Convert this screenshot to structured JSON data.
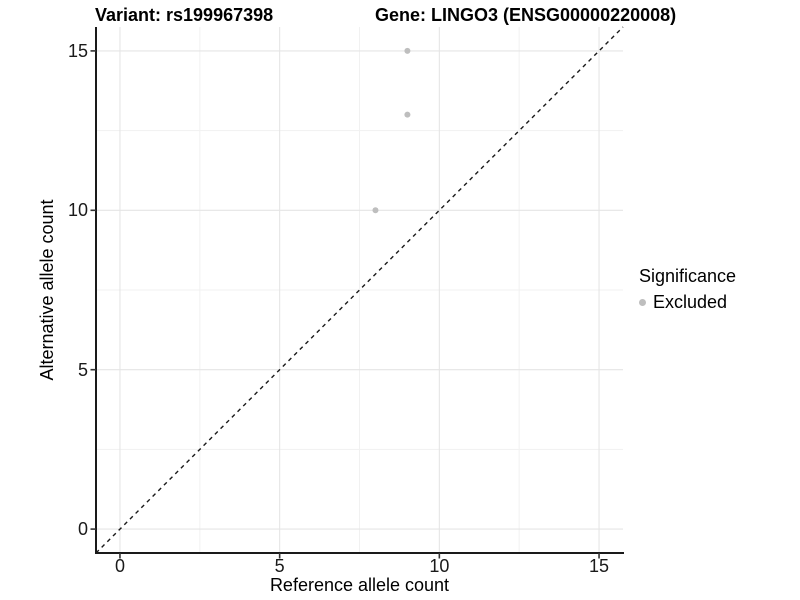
{
  "chart_data": {
    "type": "scatter",
    "title_left": "Variant: rs199967398",
    "title_right": "Gene: LINGO3 (ENSG00000220008)",
    "xlabel": "Reference allele count",
    "ylabel": "Alternative allele count",
    "xlim": [
      -0.75,
      15.75
    ],
    "ylim": [
      -0.75,
      15.75
    ],
    "x_ticks": [
      0,
      5,
      10,
      15
    ],
    "y_ticks": [
      0,
      5,
      10,
      15
    ],
    "x_minor_ticks": [
      2.5,
      7.5,
      12.5
    ],
    "y_minor_ticks": [
      2.5,
      7.5,
      12.5
    ],
    "grid": "major and minor gridlines, light gray on white",
    "series": [
      {
        "name": "Excluded",
        "marker": "circle",
        "color": "#bebebe",
        "points": [
          {
            "x": 9,
            "y": 15
          },
          {
            "x": 9,
            "y": 13
          },
          {
            "x": 8,
            "y": 10
          }
        ]
      }
    ],
    "reference_line": {
      "equation": "y = x",
      "style": "dashed",
      "color": "#1a1a1a"
    },
    "legend": {
      "title": "Significance",
      "position": "right",
      "entries": [
        {
          "label": "Excluded",
          "color": "#bebebe",
          "marker": "circle"
        }
      ]
    },
    "colors": {
      "background": "#ffffff",
      "grid_major": "#e5e5e5",
      "grid_minor": "#f1f1f1",
      "axis_line": "#1a1a1a",
      "tick_mark": "#333333",
      "point": "#bebebe",
      "text": "#000000"
    }
  }
}
